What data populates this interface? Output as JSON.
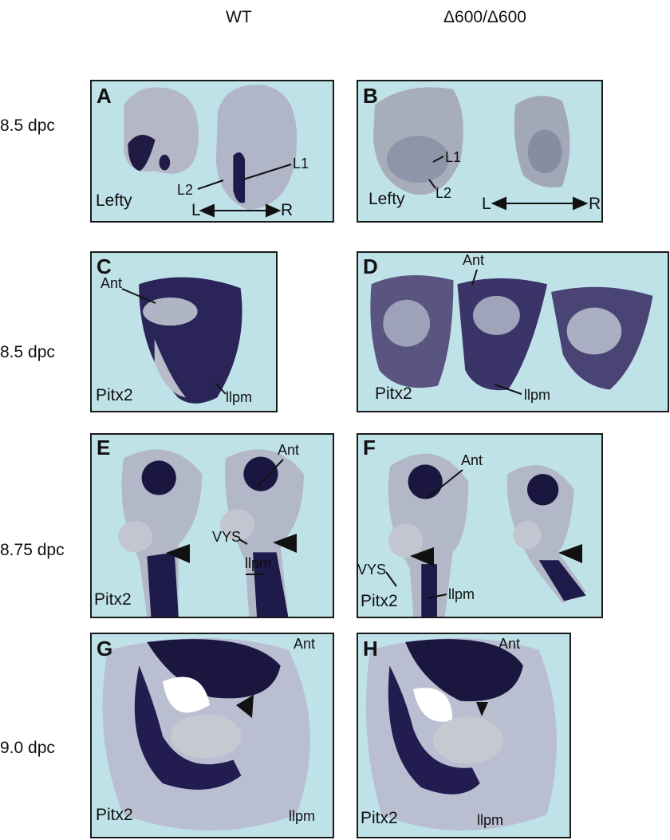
{
  "columns": [
    "WT",
    "Δ600/Δ600"
  ],
  "rows": [
    "8.5 dpc",
    "8.5 dpc",
    "8.75 dpc",
    "9.0 dpc"
  ],
  "panels": {
    "A": {
      "letter": "A",
      "gene": "Lefty",
      "labels": {
        "l2": "L2",
        "l1": "L1",
        "left": "L",
        "right": "R"
      }
    },
    "B": {
      "letter": "B",
      "gene": "Lefty",
      "labels": {
        "l1": "L1",
        "l2": "L2",
        "left": "L",
        "right": "R"
      }
    },
    "C": {
      "letter": "C",
      "gene": "Pitx2",
      "labels": {
        "ant": "Ant",
        "llpm": "llpm"
      }
    },
    "D": {
      "letter": "D",
      "gene": "Pitx2",
      "labels": {
        "ant": "Ant",
        "llpm": "llpm"
      }
    },
    "E": {
      "letter": "E",
      "gene": "Pitx2",
      "labels": {
        "ant": "Ant",
        "vys": "VYS",
        "llpm": "llpm"
      }
    },
    "F": {
      "letter": "F",
      "gene": "Pitx2",
      "labels": {
        "ant": "Ant",
        "vys": "VYS",
        "llpm": "llpm"
      }
    },
    "G": {
      "letter": "G",
      "gene": "Pitx2",
      "labels": {
        "ant": "Ant",
        "llpm": "llpm"
      }
    },
    "H": {
      "letter": "H",
      "gene": "Pitx2",
      "labels": {
        "ant": "Ant",
        "llpm": "llpm"
      }
    }
  },
  "colors": {
    "background": "#bfe2e8",
    "stain": "#1e1a4a",
    "tissue": "#a9aec4"
  }
}
